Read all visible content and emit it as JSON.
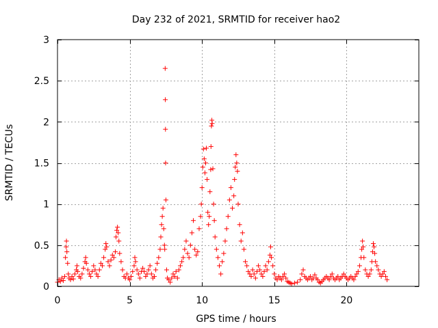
{
  "chart_data": {
    "type": "scatter",
    "title": "Day 232 of 2021, SRMTID for receiver hao2",
    "xlabel": "GPS time / hours",
    "ylabel": "SRMTID / TECUs",
    "xlim": [
      0,
      25
    ],
    "ylim": [
      0,
      3
    ],
    "xticks": [
      0,
      5,
      10,
      15,
      20
    ],
    "yticks": [
      0,
      0.5,
      1,
      1.5,
      2,
      2.5,
      3
    ],
    "xtick_labels": [
      "0",
      "5",
      "10",
      "15",
      "20"
    ],
    "ytick_labels": [
      "0",
      "0.5",
      "1",
      "1.5",
      "2",
      "2.5",
      "3"
    ],
    "grid": true,
    "marker": "+",
    "color": "#ff0000",
    "series": [
      {
        "name": "SRMTID",
        "points": [
          [
            0.0,
            0.05
          ],
          [
            0.1,
            0.08
          ],
          [
            0.2,
            0.06
          ],
          [
            0.3,
            0.1
          ],
          [
            0.4,
            0.07
          ],
          [
            0.5,
            0.12
          ],
          [
            0.55,
            0.35
          ],
          [
            0.6,
            0.48
          ],
          [
            0.62,
            0.55
          ],
          [
            0.65,
            0.42
          ],
          [
            0.7,
            0.28
          ],
          [
            0.75,
            0.15
          ],
          [
            0.8,
            0.1
          ],
          [
            0.9,
            0.08
          ],
          [
            1.0,
            0.12
          ],
          [
            1.1,
            0.09
          ],
          [
            1.2,
            0.15
          ],
          [
            1.3,
            0.2
          ],
          [
            1.35,
            0.25
          ],
          [
            1.4,
            0.18
          ],
          [
            1.5,
            0.12
          ],
          [
            1.6,
            0.1
          ],
          [
            1.7,
            0.15
          ],
          [
            1.8,
            0.22
          ],
          [
            1.9,
            0.3
          ],
          [
            1.95,
            0.35
          ],
          [
            2.0,
            0.28
          ],
          [
            2.1,
            0.2
          ],
          [
            2.2,
            0.15
          ],
          [
            2.3,
            0.12
          ],
          [
            2.4,
            0.18
          ],
          [
            2.5,
            0.25
          ],
          [
            2.6,
            0.2
          ],
          [
            2.7,
            0.15
          ],
          [
            2.8,
            0.12
          ],
          [
            2.9,
            0.2
          ],
          [
            3.0,
            0.28
          ],
          [
            3.1,
            0.25
          ],
          [
            3.2,
            0.35
          ],
          [
            3.3,
            0.45
          ],
          [
            3.35,
            0.52
          ],
          [
            3.4,
            0.48
          ],
          [
            3.5,
            0.3
          ],
          [
            3.6,
            0.25
          ],
          [
            3.7,
            0.32
          ],
          [
            3.8,
            0.38
          ],
          [
            3.9,
            0.35
          ],
          [
            4.0,
            0.42
          ],
          [
            4.05,
            0.6
          ],
          [
            4.1,
            0.68
          ],
          [
            4.15,
            0.72
          ],
          [
            4.2,
            0.65
          ],
          [
            4.25,
            0.55
          ],
          [
            4.3,
            0.4
          ],
          [
            4.4,
            0.3
          ],
          [
            4.5,
            0.2
          ],
          [
            4.6,
            0.12
          ],
          [
            4.7,
            0.1
          ],
          [
            4.8,
            0.15
          ],
          [
            4.9,
            0.1
          ],
          [
            5.0,
            0.08
          ],
          [
            5.1,
            0.12
          ],
          [
            5.2,
            0.18
          ],
          [
            5.3,
            0.25
          ],
          [
            5.35,
            0.35
          ],
          [
            5.4,
            0.3
          ],
          [
            5.5,
            0.2
          ],
          [
            5.6,
            0.15
          ],
          [
            5.7,
            0.1
          ],
          [
            5.8,
            0.18
          ],
          [
            5.9,
            0.22
          ],
          [
            6.0,
            0.18
          ],
          [
            6.1,
            0.12
          ],
          [
            6.2,
            0.15
          ],
          [
            6.3,
            0.2
          ],
          [
            6.4,
            0.25
          ],
          [
            6.5,
            0.15
          ],
          [
            6.6,
            0.1
          ],
          [
            6.7,
            0.12
          ],
          [
            6.8,
            0.2
          ],
          [
            6.9,
            0.28
          ],
          [
            7.0,
            0.35
          ],
          [
            7.1,
            0.45
          ],
          [
            7.15,
            0.6
          ],
          [
            7.2,
            0.75
          ],
          [
            7.25,
            0.85
          ],
          [
            7.3,
            0.95
          ],
          [
            7.35,
            0.7
          ],
          [
            7.4,
            0.5
          ],
          [
            7.42,
            0.45
          ],
          [
            7.45,
            2.65
          ],
          [
            7.46,
            2.27
          ],
          [
            7.47,
            1.91
          ],
          [
            7.48,
            1.5
          ],
          [
            7.5,
            1.05
          ],
          [
            7.55,
            0.2
          ],
          [
            7.6,
            0.1
          ],
          [
            7.7,
            0.08
          ],
          [
            7.8,
            0.05
          ],
          [
            7.9,
            0.1
          ],
          [
            8.0,
            0.15
          ],
          [
            8.1,
            0.12
          ],
          [
            8.2,
            0.18
          ],
          [
            8.3,
            0.1
          ],
          [
            8.4,
            0.2
          ],
          [
            8.5,
            0.25
          ],
          [
            8.6,
            0.3
          ],
          [
            8.7,
            0.35
          ],
          [
            8.8,
            0.45
          ],
          [
            8.9,
            0.55
          ],
          [
            9.0,
            0.4
          ],
          [
            9.1,
            0.35
          ],
          [
            9.2,
            0.5
          ],
          [
            9.3,
            0.65
          ],
          [
            9.4,
            0.8
          ],
          [
            9.5,
            0.45
          ],
          [
            9.6,
            0.38
          ],
          [
            9.7,
            0.42
          ],
          [
            9.8,
            0.7
          ],
          [
            9.9,
            0.85
          ],
          [
            9.95,
            1.0
          ],
          [
            10.0,
            1.2
          ],
          [
            10.05,
            1.45
          ],
          [
            10.1,
            1.67
          ],
          [
            10.15,
            1.55
          ],
          [
            10.2,
            1.38
          ],
          [
            10.25,
            1.5
          ],
          [
            10.3,
            1.68
          ],
          [
            10.35,
            1.3
          ],
          [
            10.4,
            0.9
          ],
          [
            10.45,
            0.75
          ],
          [
            10.5,
            0.85
          ],
          [
            10.55,
            1.15
          ],
          [
            10.6,
            1.42
          ],
          [
            10.62,
            1.7
          ],
          [
            10.65,
            1.95
          ],
          [
            10.68,
            2.02
          ],
          [
            10.7,
            1.98
          ],
          [
            10.75,
            1.43
          ],
          [
            10.8,
            1.0
          ],
          [
            10.85,
            0.8
          ],
          [
            10.9,
            0.6
          ],
          [
            11.0,
            0.45
          ],
          [
            11.1,
            0.35
          ],
          [
            11.2,
            0.25
          ],
          [
            11.3,
            0.15
          ],
          [
            11.4,
            0.3
          ],
          [
            11.5,
            0.4
          ],
          [
            11.6,
            0.55
          ],
          [
            11.7,
            0.7
          ],
          [
            11.8,
            0.85
          ],
          [
            11.9,
            1.05
          ],
          [
            12.0,
            1.2
          ],
          [
            12.1,
            0.95
          ],
          [
            12.2,
            1.1
          ],
          [
            12.25,
            1.3
          ],
          [
            12.3,
            1.45
          ],
          [
            12.35,
            1.6
          ],
          [
            12.4,
            1.5
          ],
          [
            12.45,
            1.4
          ],
          [
            12.5,
            1.0
          ],
          [
            12.6,
            0.75
          ],
          [
            12.7,
            0.55
          ],
          [
            12.8,
            0.65
          ],
          [
            12.9,
            0.45
          ],
          [
            13.0,
            0.3
          ],
          [
            13.1,
            0.25
          ],
          [
            13.2,
            0.18
          ],
          [
            13.3,
            0.15
          ],
          [
            13.4,
            0.12
          ],
          [
            13.5,
            0.2
          ],
          [
            13.6,
            0.15
          ],
          [
            13.7,
            0.1
          ],
          [
            13.8,
            0.18
          ],
          [
            13.9,
            0.25
          ],
          [
            14.0,
            0.2
          ],
          [
            14.1,
            0.15
          ],
          [
            14.2,
            0.12
          ],
          [
            14.3,
            0.18
          ],
          [
            14.4,
            0.25
          ],
          [
            14.5,
            0.2
          ],
          [
            14.6,
            0.3
          ],
          [
            14.7,
            0.38
          ],
          [
            14.75,
            0.48
          ],
          [
            14.8,
            0.35
          ],
          [
            14.9,
            0.25
          ],
          [
            15.0,
            0.15
          ],
          [
            15.1,
            0.1
          ],
          [
            15.2,
            0.08
          ],
          [
            15.3,
            0.12
          ],
          [
            15.4,
            0.1
          ],
          [
            15.5,
            0.08
          ],
          [
            15.6,
            0.12
          ],
          [
            15.7,
            0.15
          ],
          [
            15.8,
            0.1
          ],
          [
            15.9,
            0.06
          ],
          [
            16.0,
            0.05
          ],
          [
            16.1,
            0.04
          ],
          [
            16.2,
            0.03
          ],
          [
            16.4,
            0.04
          ],
          [
            16.6,
            0.05
          ],
          [
            16.8,
            0.08
          ],
          [
            16.9,
            0.15
          ],
          [
            17.0,
            0.2
          ],
          [
            17.1,
            0.12
          ],
          [
            17.2,
            0.1
          ],
          [
            17.3,
            0.08
          ],
          [
            17.4,
            0.1
          ],
          [
            17.5,
            0.12
          ],
          [
            17.6,
            0.08
          ],
          [
            17.7,
            0.1
          ],
          [
            17.8,
            0.14
          ],
          [
            17.9,
            0.1
          ],
          [
            18.0,
            0.08
          ],
          [
            18.1,
            0.05
          ],
          [
            18.2,
            0.04
          ],
          [
            18.3,
            0.06
          ],
          [
            18.4,
            0.08
          ],
          [
            18.5,
            0.1
          ],
          [
            18.6,
            0.12
          ],
          [
            18.7,
            0.1
          ],
          [
            18.8,
            0.08
          ],
          [
            18.9,
            0.12
          ],
          [
            19.0,
            0.15
          ],
          [
            19.1,
            0.1
          ],
          [
            19.2,
            0.08
          ],
          [
            19.3,
            0.1
          ],
          [
            19.4,
            0.12
          ],
          [
            19.5,
            0.08
          ],
          [
            19.6,
            0.1
          ],
          [
            19.7,
            0.12
          ],
          [
            19.8,
            0.15
          ],
          [
            19.9,
            0.12
          ],
          [
            20.0,
            0.1
          ],
          [
            20.1,
            0.08
          ],
          [
            20.2,
            0.1
          ],
          [
            20.3,
            0.12
          ],
          [
            20.4,
            0.1
          ],
          [
            20.5,
            0.08
          ],
          [
            20.6,
            0.12
          ],
          [
            20.7,
            0.15
          ],
          [
            20.8,
            0.18
          ],
          [
            20.9,
            0.25
          ],
          [
            21.0,
            0.35
          ],
          [
            21.05,
            0.45
          ],
          [
            21.1,
            0.55
          ],
          [
            21.15,
            0.48
          ],
          [
            21.2,
            0.35
          ],
          [
            21.3,
            0.2
          ],
          [
            21.4,
            0.15
          ],
          [
            21.5,
            0.12
          ],
          [
            21.6,
            0.15
          ],
          [
            21.7,
            0.2
          ],
          [
            21.75,
            0.3
          ],
          [
            21.8,
            0.42
          ],
          [
            21.85,
            0.52
          ],
          [
            21.9,
            0.48
          ],
          [
            21.95,
            0.4
          ],
          [
            22.0,
            0.3
          ],
          [
            22.1,
            0.25
          ],
          [
            22.2,
            0.2
          ],
          [
            22.3,
            0.15
          ],
          [
            22.4,
            0.12
          ],
          [
            22.5,
            0.15
          ],
          [
            22.6,
            0.18
          ],
          [
            22.7,
            0.12
          ],
          [
            22.8,
            0.08
          ]
        ]
      }
    ]
  }
}
